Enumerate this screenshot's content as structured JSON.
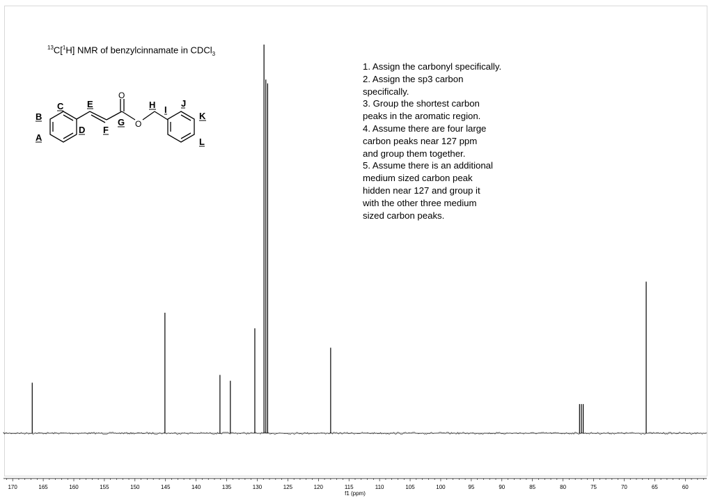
{
  "title": {
    "pre": "13",
    "mid1": "C[",
    "sup2": "1",
    "mid2": "H] NMR of benzylcinnamate in CDCl",
    "sub": "3"
  },
  "instructions": [
    "1. Assign the carbonyl specifically.",
    "2. Assign the sp3 carbon",
    "specifically.",
    "3. Group the shortest carbon",
    "peaks in the aromatic region.",
    "4. Assume there are four large",
    "carbon peaks near 127 ppm",
    "and group them together.",
    "5. Assume there is an additional",
    "medium sized carbon peak",
    "hidden near 127 and group it",
    "with the other three medium",
    "sized carbon peaks."
  ],
  "molecule": {
    "atom_o1": "O",
    "atom_o2": "O",
    "labels": [
      "A",
      "B",
      "C",
      "D",
      "E",
      "F",
      "G",
      "H",
      "I",
      "J",
      "K",
      "L"
    ]
  },
  "chart_data": {
    "type": "line",
    "xlabel": "f1 (ppm)",
    "xlim": [
      171.5,
      56.5
    ],
    "x_reversed": true,
    "ticks": [
      170,
      165,
      160,
      155,
      150,
      145,
      140,
      135,
      130,
      125,
      120,
      115,
      110,
      105,
      100,
      95,
      90,
      85,
      80,
      75,
      70,
      65,
      60
    ],
    "ylim": [
      0,
      1.0
    ],
    "peaks": [
      {
        "ppm": 166.8,
        "intensity": 0.13
      },
      {
        "ppm": 145.1,
        "intensity": 0.31
      },
      {
        "ppm": 136.1,
        "intensity": 0.15
      },
      {
        "ppm": 134.4,
        "intensity": 0.135
      },
      {
        "ppm": 130.4,
        "intensity": 0.27
      },
      {
        "ppm": 128.9,
        "intensity": 1.0
      },
      {
        "ppm": 128.6,
        "intensity": 0.91
      },
      {
        "ppm": 128.3,
        "intensity": 0.9
      },
      {
        "ppm": 118.0,
        "intensity": 0.22
      },
      {
        "ppm": 77.3,
        "intensity": 0.075
      },
      {
        "ppm": 77.0,
        "intensity": 0.075
      },
      {
        "ppm": 76.7,
        "intensity": 0.075
      },
      {
        "ppm": 66.4,
        "intensity": 0.39
      }
    ]
  }
}
